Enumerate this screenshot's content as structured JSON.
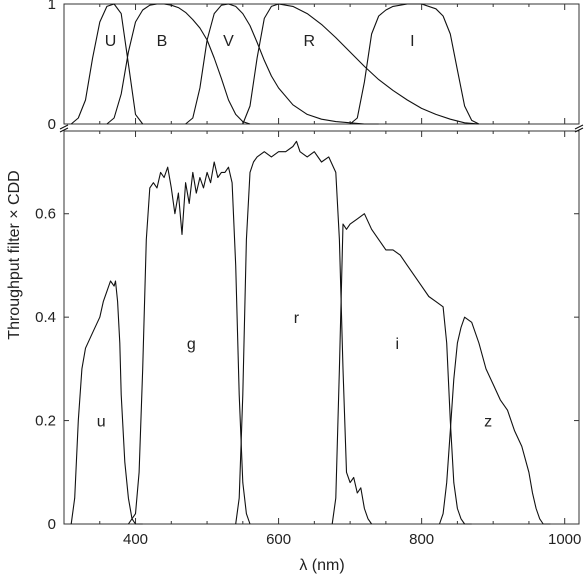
{
  "chart_data": [
    {
      "type": "line",
      "title": "",
      "xlabel": "",
      "ylabel": "",
      "xlim": [
        300,
        1020
      ],
      "ylim": [
        0,
        1
      ],
      "yticks": [
        0,
        1
      ],
      "grid": false,
      "legend": "none",
      "series": [
        {
          "name": "U",
          "x": [
            310,
            320,
            330,
            340,
            350,
            360,
            370,
            380,
            390,
            400,
            410
          ],
          "y": [
            0,
            0.05,
            0.2,
            0.55,
            0.85,
            0.98,
            1.0,
            0.92,
            0.5,
            0.08,
            0
          ]
        },
        {
          "name": "B",
          "x": [
            360,
            370,
            380,
            390,
            400,
            410,
            420,
            430,
            440,
            450,
            460,
            470,
            480,
            490,
            500,
            510,
            520,
            530,
            540,
            550,
            560
          ],
          "y": [
            0,
            0.05,
            0.25,
            0.6,
            0.85,
            0.95,
            0.99,
            1.0,
            1.0,
            0.99,
            0.97,
            0.93,
            0.87,
            0.8,
            0.7,
            0.55,
            0.38,
            0.2,
            0.08,
            0.02,
            0
          ]
        },
        {
          "name": "V",
          "x": [
            470,
            480,
            490,
            500,
            510,
            520,
            530,
            540,
            550,
            560,
            570,
            580,
            590,
            600,
            620,
            640,
            660,
            680,
            700,
            720,
            740
          ],
          "y": [
            0,
            0.05,
            0.3,
            0.7,
            0.92,
            0.99,
            1.0,
            0.98,
            0.92,
            0.82,
            0.68,
            0.53,
            0.4,
            0.3,
            0.16,
            0.08,
            0.04,
            0.02,
            0.01,
            0,
            0
          ]
        },
        {
          "name": "R",
          "x": [
            550,
            560,
            570,
            580,
            590,
            600,
            620,
            640,
            660,
            680,
            700,
            720,
            740,
            760,
            780,
            800,
            820,
            840,
            860,
            880
          ],
          "y": [
            0,
            0.15,
            0.55,
            0.88,
            0.98,
            1.0,
            0.98,
            0.92,
            0.83,
            0.72,
            0.6,
            0.48,
            0.37,
            0.28,
            0.2,
            0.13,
            0.08,
            0.04,
            0.01,
            0
          ]
        },
        {
          "name": "I",
          "x": [
            700,
            710,
            720,
            730,
            740,
            750,
            760,
            780,
            800,
            820,
            830,
            840,
            850,
            860,
            870,
            880
          ],
          "y": [
            0,
            0.05,
            0.35,
            0.75,
            0.9,
            0.95,
            0.98,
            1.0,
            1.0,
            0.96,
            0.9,
            0.75,
            0.45,
            0.15,
            0.03,
            0
          ]
        }
      ],
      "labels": [
        {
          "text": "U",
          "x": 365,
          "y": 0.7
        },
        {
          "text": "B",
          "x": 437,
          "y": 0.7
        },
        {
          "text": "V",
          "x": 530,
          "y": 0.7
        },
        {
          "text": "R",
          "x": 643,
          "y": 0.7
        },
        {
          "text": "I",
          "x": 787,
          "y": 0.7
        }
      ]
    },
    {
      "type": "line",
      "title": "",
      "xlabel": "λ (nm)",
      "ylabel": "Throughput filter × CDD",
      "xlim": [
        300,
        1020
      ],
      "ylim": [
        0,
        0.76
      ],
      "xticks": [
        400,
        600,
        800,
        1000
      ],
      "yticks": [
        0,
        0.2,
        0.4,
        0.6
      ],
      "grid": false,
      "legend": "none",
      "series": [
        {
          "name": "u",
          "x": [
            310,
            315,
            320,
            325,
            330,
            340,
            350,
            355,
            360,
            365,
            370,
            372,
            375,
            378,
            380,
            385,
            390,
            395,
            400,
            405,
            410
          ],
          "y": [
            0,
            0.05,
            0.2,
            0.3,
            0.34,
            0.37,
            0.4,
            0.43,
            0.45,
            0.47,
            0.46,
            0.47,
            0.43,
            0.35,
            0.25,
            0.12,
            0.05,
            0.01,
            0,
            0,
            0
          ]
        },
        {
          "name": "g",
          "x": [
            390,
            400,
            405,
            410,
            415,
            420,
            425,
            430,
            435,
            440,
            445,
            450,
            455,
            460,
            465,
            470,
            475,
            480,
            485,
            490,
            495,
            500,
            505,
            510,
            515,
            520,
            525,
            530,
            535,
            540,
            545,
            550,
            555,
            560
          ],
          "y": [
            0,
            0.02,
            0.1,
            0.3,
            0.55,
            0.65,
            0.66,
            0.65,
            0.68,
            0.67,
            0.69,
            0.65,
            0.6,
            0.64,
            0.56,
            0.66,
            0.62,
            0.68,
            0.64,
            0.67,
            0.65,
            0.68,
            0.66,
            0.7,
            0.67,
            0.68,
            0.68,
            0.69,
            0.66,
            0.5,
            0.25,
            0.08,
            0.02,
            0
          ]
        },
        {
          "name": "r",
          "x": [
            540,
            545,
            550,
            555,
            560,
            565,
            570,
            580,
            590,
            600,
            610,
            620,
            625,
            630,
            640,
            650,
            660,
            670,
            680,
            685,
            690,
            695,
            700,
            705,
            710,
            715,
            720,
            725,
            730
          ],
          "y": [
            0,
            0.05,
            0.25,
            0.55,
            0.68,
            0.7,
            0.71,
            0.72,
            0.71,
            0.72,
            0.72,
            0.73,
            0.74,
            0.72,
            0.71,
            0.72,
            0.7,
            0.71,
            0.68,
            0.55,
            0.3,
            0.1,
            0.08,
            0.09,
            0.06,
            0.07,
            0.03,
            0.01,
            0
          ]
        },
        {
          "name": "i",
          "x": [
            675,
            680,
            685,
            690,
            695,
            700,
            710,
            720,
            730,
            740,
            750,
            760,
            770,
            780,
            790,
            800,
            810,
            820,
            830,
            835,
            840,
            845,
            850,
            855,
            860,
            870
          ],
          "y": [
            0,
            0.05,
            0.3,
            0.58,
            0.57,
            0.58,
            0.59,
            0.6,
            0.57,
            0.55,
            0.53,
            0.53,
            0.52,
            0.5,
            0.48,
            0.46,
            0.44,
            0.43,
            0.42,
            0.35,
            0.2,
            0.08,
            0.03,
            0.01,
            0,
            0
          ]
        },
        {
          "name": "z",
          "x": [
            825,
            830,
            835,
            840,
            845,
            850,
            855,
            860,
            870,
            880,
            890,
            900,
            910,
            920,
            930,
            940,
            950,
            955,
            960,
            965,
            970,
            980
          ],
          "y": [
            0,
            0.02,
            0.08,
            0.18,
            0.28,
            0.35,
            0.38,
            0.4,
            0.39,
            0.35,
            0.3,
            0.27,
            0.24,
            0.22,
            0.18,
            0.15,
            0.1,
            0.06,
            0.03,
            0.01,
            0,
            0
          ]
        }
      ],
      "labels": [
        {
          "text": "u",
          "x": 352,
          "y": 0.2
        },
        {
          "text": "g",
          "x": 478,
          "y": 0.35
        },
        {
          "text": "r",
          "x": 625,
          "y": 0.4
        },
        {
          "text": "i",
          "x": 766,
          "y": 0.35
        },
        {
          "text": "z",
          "x": 893,
          "y": 0.2
        }
      ]
    }
  ]
}
